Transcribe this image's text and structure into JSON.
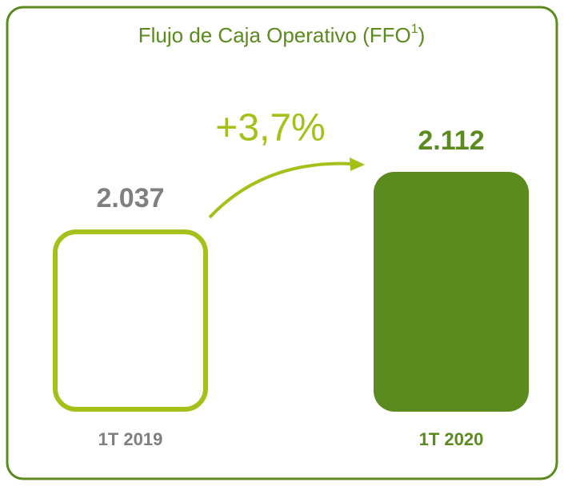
{
  "chart_data": {
    "type": "bar",
    "title": "Flujo de Caja Operativo (FFO",
    "title_superscript": "1",
    "title_end": ")",
    "annotation": "+3,7%",
    "categories": [
      "1T 2019",
      "1T 2020"
    ],
    "values": [
      2037,
      2112
    ],
    "value_labels": [
      "2.037",
      "2.112"
    ],
    "colors": [
      "#a5c019",
      "#5b8a1e"
    ],
    "filled": [
      false,
      true
    ],
    "label_colors": [
      "#7f7f7f",
      "#5b8a1e"
    ],
    "ylim": [
      1800,
      2112
    ]
  }
}
